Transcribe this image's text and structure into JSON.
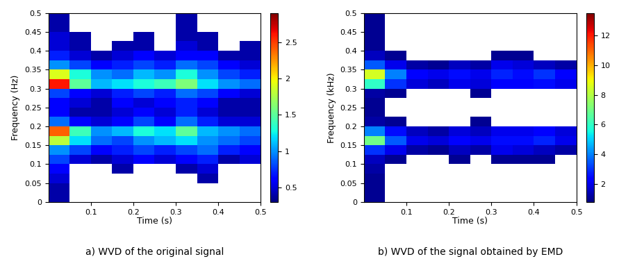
{
  "chart_data": [
    {
      "type": "heatmap",
      "caption": "a) WVD of the original signal",
      "x_label": "Time (s)",
      "y_label": "Frequency (Hz)",
      "xlim": [
        0,
        0.5
      ],
      "ylim": [
        0,
        0.5
      ],
      "xticks": [
        0.1,
        0.2,
        0.3,
        0.4,
        0.5
      ],
      "yticks": [
        0,
        0.05,
        0.1,
        0.15,
        0.2,
        0.25,
        0.3,
        0.35,
        0.4,
        0.45,
        0.5
      ],
      "x_bins": [
        0,
        0.05,
        0.1,
        0.15,
        0.2,
        0.25,
        0.3,
        0.35,
        0.4,
        0.45,
        0.5
      ],
      "y_bins": [
        0,
        0.025,
        0.05,
        0.075,
        0.1,
        0.125,
        0.15,
        0.175,
        0.2,
        0.225,
        0.25,
        0.275,
        0.3,
        0.325,
        0.35,
        0.375,
        0.4,
        0.425,
        0.45,
        0.475,
        0.5
      ],
      "cells": [
        [
          0.4,
          0,
          0,
          0,
          0,
          0,
          0,
          0,
          0,
          0
        ],
        [
          0.4,
          0,
          0,
          0,
          0,
          0,
          0,
          0,
          0,
          0
        ],
        [
          0.5,
          0,
          0,
          0,
          0,
          0,
          0,
          0.4,
          0,
          0
        ],
        [
          0.6,
          0,
          0,
          0.4,
          0,
          0,
          0.4,
          0.5,
          0,
          0
        ],
        [
          0.8,
          0.5,
          0.4,
          0.5,
          0.6,
          0.5,
          0.6,
          0.7,
          0.4,
          0.5
        ],
        [
          1.0,
          0.8,
          0.6,
          0.7,
          0.8,
          0.7,
          0.8,
          0.9,
          0.7,
          0.6
        ],
        [
          1.8,
          1.2,
          0.9,
          0.8,
          1.0,
          1.1,
          1.2,
          1.0,
          0.9,
          0.8
        ],
        [
          2.4,
          1.4,
          1.0,
          1.1,
          1.3,
          1.2,
          1.5,
          1.1,
          1.0,
          0.9
        ],
        [
          0.9,
          0.6,
          0.5,
          0.6,
          0.8,
          0.6,
          0.9,
          0.7,
          0.5,
          0.5
        ],
        [
          0.6,
          0.4,
          0.4,
          0.5,
          0.6,
          0.5,
          0.7,
          0.5,
          0.4,
          0.4
        ],
        [
          0.6,
          0.5,
          0.4,
          0.6,
          0.5,
          0.6,
          0.7,
          0.6,
          0.4,
          0.4
        ],
        [
          0.8,
          0.6,
          0.5,
          0.7,
          0.8,
          0.7,
          0.9,
          0.8,
          0.6,
          0.5
        ],
        [
          2.6,
          1.5,
          1.1,
          1.2,
          1.3,
          1.4,
          1.6,
          1.2,
          1.0,
          0.9
        ],
        [
          1.9,
          1.3,
          1.0,
          0.9,
          1.1,
          1.0,
          1.3,
          1.0,
          0.8,
          0.7
        ],
        [
          1.0,
          0.8,
          0.6,
          0.7,
          0.8,
          0.7,
          0.9,
          0.8,
          0.6,
          0.5
        ],
        [
          0.7,
          0.5,
          0.4,
          0.5,
          0.6,
          0.5,
          0.6,
          0.6,
          0.4,
          0.4
        ],
        [
          0.5,
          0.4,
          0,
          0.4,
          0.4,
          0,
          0.5,
          0.4,
          0,
          0.4
        ],
        [
          0.5,
          0.4,
          0,
          0,
          0.4,
          0,
          0.4,
          0.4,
          0,
          0
        ],
        [
          0.4,
          0,
          0,
          0,
          0,
          0,
          0.4,
          0,
          0,
          0
        ],
        [
          0.4,
          0,
          0,
          0,
          0,
          0,
          0.4,
          0,
          0,
          0
        ]
      ],
      "colorbar_range": [
        0.3,
        2.9
      ],
      "colorbar_ticks": [
        0.5,
        1,
        1.5,
        2,
        2.5
      ]
    },
    {
      "type": "heatmap",
      "caption": "b) WVD of the signal obtained by EMD",
      "x_label": "Time (s)",
      "y_label": "Frequency (kHz)",
      "xlim": [
        0,
        0.5
      ],
      "ylim": [
        0,
        0.5
      ],
      "xticks": [
        0.1,
        0.2,
        0.3,
        0.4,
        0.5
      ],
      "yticks": [
        0,
        0.05,
        0.1,
        0.15,
        0.2,
        0.25,
        0.3,
        0.35,
        0.4,
        0.45,
        0.5
      ],
      "x_bins": [
        0,
        0.05,
        0.1,
        0.15,
        0.2,
        0.25,
        0.3,
        0.35,
        0.4,
        0.45,
        0.5
      ],
      "y_bins": [
        0,
        0.025,
        0.05,
        0.075,
        0.1,
        0.125,
        0.15,
        0.175,
        0.2,
        0.225,
        0.25,
        0.275,
        0.3,
        0.325,
        0.35,
        0.375,
        0.4,
        0.425,
        0.45,
        0.475,
        0.5
      ],
      "cells": [
        [
          1.0,
          0,
          0,
          0,
          0,
          0,
          0,
          0,
          0,
          0
        ],
        [
          1.0,
          0,
          0,
          0,
          0,
          0,
          0,
          0,
          0,
          0
        ],
        [
          1.0,
          0,
          0,
          0,
          0,
          0,
          0,
          0,
          0,
          0
        ],
        [
          1.2,
          0,
          0,
          0,
          0,
          0,
          0,
          0,
          0,
          0
        ],
        [
          1.5,
          1.0,
          0,
          0,
          1.0,
          0,
          1.0,
          1.0,
          1.0,
          0
        ],
        [
          3.0,
          2.0,
          1.2,
          1.0,
          1.5,
          1.2,
          2.0,
          1.8,
          1.5,
          1.2
        ],
        [
          7.0,
          3.5,
          2.0,
          1.8,
          2.2,
          2.0,
          2.5,
          2.5,
          2.8,
          2.0
        ],
        [
          4.0,
          2.5,
          1.5,
          1.2,
          1.8,
          1.5,
          2.0,
          2.0,
          2.2,
          1.8
        ],
        [
          1.2,
          1.0,
          0,
          0,
          0,
          1.0,
          0,
          0,
          0,
          0
        ],
        [
          1.0,
          0,
          0,
          0,
          0,
          0,
          0,
          0,
          0,
          0
        ],
        [
          1.0,
          0,
          0,
          0,
          0,
          0,
          0,
          0,
          0,
          0
        ],
        [
          1.2,
          1.0,
          0,
          0,
          0,
          1.0,
          0,
          0,
          0,
          0
        ],
        [
          6.0,
          3.0,
          1.8,
          1.5,
          2.0,
          1.8,
          2.2,
          2.2,
          2.5,
          2.0
        ],
        [
          8.5,
          4.0,
          2.2,
          2.0,
          2.5,
          2.0,
          2.8,
          2.5,
          3.0,
          2.2
        ],
        [
          3.5,
          2.0,
          1.2,
          1.0,
          1.5,
          1.2,
          2.0,
          1.8,
          1.5,
          1.2
        ],
        [
          1.5,
          1.0,
          0,
          0,
          0,
          0,
          1.0,
          1.0,
          0,
          0
        ],
        [
          1.0,
          0,
          0,
          0,
          0,
          0,
          0,
          0,
          0,
          0
        ],
        [
          1.0,
          0,
          0,
          0,
          0,
          0,
          0,
          0,
          0,
          0
        ],
        [
          1.0,
          0,
          0,
          0,
          0,
          0,
          0,
          0,
          0,
          0
        ],
        [
          1.0,
          0,
          0,
          0,
          0,
          0,
          0,
          0,
          0,
          0
        ]
      ],
      "colorbar_range": [
        0.8,
        13.5
      ],
      "colorbar_ticks": [
        2,
        4,
        6,
        8,
        10,
        12
      ]
    }
  ]
}
